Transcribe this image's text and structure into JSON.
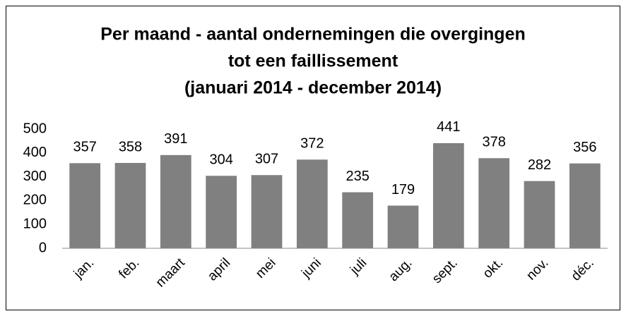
{
  "chart_data": {
    "type": "bar",
    "title": [
      "Per maand - aantal ondernemingen die overgingen",
      "tot een faillissement",
      "(januari 2014 - december 2014)"
    ],
    "categories": [
      "jan.",
      "feb.",
      "maart",
      "april",
      "mei",
      "juni",
      "juli",
      "aug.",
      "sept.",
      "okt.",
      "nov.",
      "déc."
    ],
    "values": [
      357,
      358,
      391,
      304,
      307,
      372,
      235,
      179,
      441,
      378,
      282,
      356
    ],
    "color": "#808080",
    "ylim": [
      0,
      500
    ],
    "yticks": [
      0,
      100,
      200,
      300,
      400,
      500
    ],
    "grid": false
  }
}
